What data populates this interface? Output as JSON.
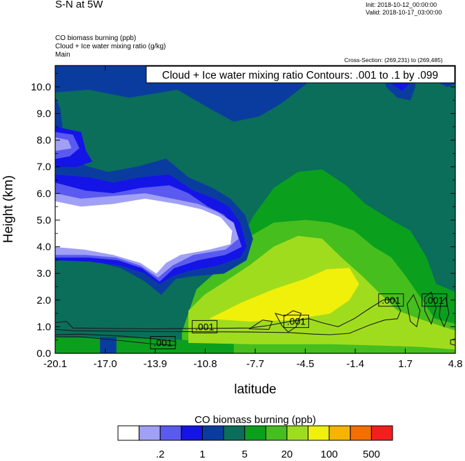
{
  "header": {
    "title": "S-N at 5W",
    "init": "Init: 2018-10-12_00:00:00",
    "valid": "Valid: 2018-10-17_03:00:00",
    "field1": "CO biomass burning   (ppb)",
    "field2": "Cloud + Ice water mixing ratio   (g/kg)",
    "field3": "Main",
    "cross_section": "Cross-Section: (269,231) to (269,485)"
  },
  "chart_data": {
    "type": "heatmap",
    "title": "Cloud + Ice water mixing ratio Contours: .001 to .1 by .099",
    "xlabel": "latitude",
    "ylabel": "Height (km)",
    "xlim": [
      -20.1,
      4.8
    ],
    "ylim": [
      0.0,
      10.8
    ],
    "x_ticks": [
      "-20.1",
      "-17.0",
      "-13.9",
      "-10.8",
      "-7.7",
      "-4.5",
      "-1.4",
      "1.7",
      "4.8"
    ],
    "y_ticks": [
      "0.0",
      "1.0",
      "2.0",
      "3.0",
      "4.0",
      "5.0",
      "6.0",
      "7.0",
      "8.0",
      "9.0",
      "10.0"
    ],
    "contour_labels": [
      {
        "text": ".001",
        "lat": -13.4,
        "height": 0.4
      },
      {
        "text": ".001",
        "lat": -10.8,
        "height": 1.0
      },
      {
        "text": ".001",
        "lat": -5.1,
        "height": 1.2
      },
      {
        "text": ".001",
        "lat": 0.8,
        "height": 2.0
      },
      {
        "text": ".001",
        "lat": 3.5,
        "height": 2.0
      }
    ],
    "colorbar": {
      "label": "CO biomass burning  (ppb)",
      "colors": [
        "#ffffff",
        "#a0a0f5",
        "#5a5af0",
        "#1414e6",
        "#0a3ca0",
        "#0a6e5a",
        "#0aa01e",
        "#46be1e",
        "#a0dc1e",
        "#f0f00a",
        "#f5b400",
        "#f56e00",
        "#f51e1e"
      ],
      "tick_labels": [
        ".2",
        "1",
        "5",
        "20",
        "100",
        "500"
      ]
    },
    "regions": [
      {
        "fill": "#0a6e5a",
        "pts": [
          [
            -20.1,
            0
          ],
          [
            4.8,
            0
          ],
          [
            4.8,
            10.8
          ],
          [
            -20.1,
            10.8
          ]
        ]
      },
      {
        "fill": "#0aa01e",
        "pts": [
          [
            -11.5,
            1.6
          ],
          [
            -10,
            2.6
          ],
          [
            -9,
            3.8
          ],
          [
            -7.7,
            5.2
          ],
          [
            -6.5,
            6.2
          ],
          [
            -5,
            6.8
          ],
          [
            -3.5,
            6.9
          ],
          [
            -2,
            6.3
          ],
          [
            -0.8,
            5.6
          ],
          [
            0.8,
            5.0
          ],
          [
            2,
            4.6
          ],
          [
            3,
            3.6
          ],
          [
            3.6,
            2.6
          ],
          [
            4.8,
            2.3
          ],
          [
            4.8,
            0
          ],
          [
            -11.5,
            0
          ]
        ]
      },
      {
        "fill": "#46be1e",
        "pts": [
          [
            -12.2,
            0.8
          ],
          [
            -11.3,
            2.4
          ],
          [
            -10,
            3.1
          ],
          [
            -8.5,
            4.2
          ],
          [
            -6.5,
            4.9
          ],
          [
            -4.5,
            5.0
          ],
          [
            -3,
            4.9
          ],
          [
            -1.5,
            4.6
          ],
          [
            -0.3,
            4.0
          ],
          [
            0.8,
            3.6
          ],
          [
            1.7,
            2.9
          ],
          [
            2.5,
            2.2
          ],
          [
            3.5,
            1.3
          ],
          [
            4.8,
            1.1
          ],
          [
            4.8,
            0
          ],
          [
            -12.2,
            0
          ]
        ]
      },
      {
        "fill": "#0aa01e",
        "pts": [
          [
            -20.1,
            0
          ],
          [
            -20.1,
            0.6
          ],
          [
            -14,
            0.55
          ],
          [
            -12.2,
            0.5
          ],
          [
            -10.8,
            0.45
          ],
          [
            -9,
            0.4
          ],
          [
            -9,
            0
          ],
          [
            -20.1,
            0
          ]
        ]
      },
      {
        "fill": "#a0dc1e",
        "pts": [
          [
            -11.8,
            1.6
          ],
          [
            -10.8,
            2.2
          ],
          [
            -9.5,
            2.7
          ],
          [
            -8,
            3.3
          ],
          [
            -6.5,
            4.0
          ],
          [
            -5,
            4.4
          ],
          [
            -3.5,
            4.3
          ],
          [
            -2.3,
            3.6
          ],
          [
            -1,
            2.9
          ],
          [
            0,
            2.3
          ],
          [
            1.2,
            1.6
          ],
          [
            2.5,
            1.3
          ],
          [
            4,
            1.0
          ],
          [
            4.8,
            0.85
          ],
          [
            4.8,
            0.15
          ],
          [
            2.5,
            0.25
          ],
          [
            0,
            0.3
          ],
          [
            -3,
            0.35
          ],
          [
            -8,
            0.35
          ],
          [
            -11.8,
            0.4
          ]
        ]
      },
      {
        "fill": "#f0f00a",
        "pts": [
          [
            -10.5,
            1.3
          ],
          [
            -8.5,
            1.9
          ],
          [
            -6.5,
            2.4
          ],
          [
            -4.5,
            2.8
          ],
          [
            -3.2,
            3.15
          ],
          [
            -1.8,
            3.2
          ],
          [
            -1.2,
            2.6
          ],
          [
            -1.8,
            2.0
          ],
          [
            -3,
            1.5
          ],
          [
            -5.5,
            1.25
          ],
          [
            -8,
            1.2
          ]
        ]
      },
      {
        "fill": "#0a3ca0",
        "pts": [
          [
            -20.1,
            3.9
          ],
          [
            -19.5,
            4.6
          ],
          [
            -19.6,
            5.8
          ],
          [
            -19.5,
            7.8
          ],
          [
            -19.8,
            9.2
          ],
          [
            -20.1,
            9.6
          ]
        ]
      },
      {
        "fill": "#0a3ca0",
        "pts": [
          [
            -15.5,
            9.6
          ],
          [
            -12.5,
            9.9
          ],
          [
            -10.5,
            9.2
          ],
          [
            -9,
            8.7
          ],
          [
            -7.4,
            8.9
          ],
          [
            -6,
            9.4
          ],
          [
            -4.5,
            10.1
          ],
          [
            -3.5,
            10.8
          ],
          [
            -20.1,
            10.8
          ],
          [
            -20.1,
            9.8
          ],
          [
            -18,
            9.9
          ]
        ]
      },
      {
        "fill": "#0a3ca0",
        "pts": [
          [
            -13.5,
            2.2
          ],
          [
            -14.5,
            2.7
          ],
          [
            -16,
            3.2
          ],
          [
            -18.5,
            3.6
          ],
          [
            -20.1,
            3.8
          ],
          [
            -20.1,
            7.2
          ],
          [
            -19.4,
            7.3
          ],
          [
            -18,
            7.0
          ],
          [
            -16.8,
            6.8
          ],
          [
            -15,
            7.0
          ],
          [
            -13.2,
            7.3
          ],
          [
            -11.8,
            6.6
          ],
          [
            -10.3,
            6.2
          ],
          [
            -9.2,
            5.8
          ],
          [
            -8.3,
            5.2
          ],
          [
            -7.8,
            4.3
          ],
          [
            -8.2,
            3.5
          ],
          [
            -9.6,
            3.0
          ],
          [
            -11.5,
            2.9
          ],
          [
            -12.6,
            2.8
          ]
        ]
      },
      {
        "fill": "#1414e6",
        "pts": [
          [
            -13.6,
            2.6
          ],
          [
            -14.5,
            3.0
          ],
          [
            -16,
            3.3
          ],
          [
            -18,
            3.45
          ],
          [
            -20.1,
            3.5
          ],
          [
            -20.1,
            6.7
          ],
          [
            -18,
            6.6
          ],
          [
            -16.5,
            6.4
          ],
          [
            -14.8,
            6.6
          ],
          [
            -13,
            6.7
          ],
          [
            -11.5,
            6.1
          ],
          [
            -10.2,
            5.8
          ],
          [
            -9.3,
            5.5
          ],
          [
            -8.6,
            4.9
          ],
          [
            -8.2,
            4.0
          ],
          [
            -8.6,
            3.6
          ],
          [
            -10,
            3.3
          ],
          [
            -11.8,
            3.1
          ],
          [
            -12.8,
            2.9
          ]
        ]
      },
      {
        "fill": "#5a5af0",
        "pts": [
          [
            -13.6,
            2.7
          ],
          [
            -14.7,
            3.2
          ],
          [
            -16.2,
            3.5
          ],
          [
            -18,
            3.6
          ],
          [
            -20.1,
            3.6
          ],
          [
            -20.1,
            6.4
          ],
          [
            -18.2,
            6.1
          ],
          [
            -16.5,
            6.0
          ],
          [
            -14.8,
            6.2
          ],
          [
            -13,
            6.3
          ],
          [
            -11.8,
            6.0
          ],
          [
            -10.6,
            5.5
          ],
          [
            -9.6,
            5.2
          ],
          [
            -8.9,
            4.7
          ],
          [
            -8.5,
            4.0
          ],
          [
            -9.5,
            3.7
          ],
          [
            -11.2,
            3.5
          ],
          [
            -12.7,
            3.2
          ]
        ]
      },
      {
        "fill": "#a0a0f5",
        "pts": [
          [
            -13.7,
            2.85
          ],
          [
            -14.8,
            3.3
          ],
          [
            -16.3,
            3.6
          ],
          [
            -18.2,
            3.7
          ],
          [
            -20.1,
            3.7
          ],
          [
            -20.1,
            6.0
          ],
          [
            -18.5,
            5.8
          ],
          [
            -16.5,
            5.9
          ],
          [
            -14.5,
            6.0
          ],
          [
            -12.8,
            5.8
          ],
          [
            -11.2,
            5.6
          ],
          [
            -10,
            5.3
          ],
          [
            -9.0,
            4.9
          ],
          [
            -8.7,
            4.3
          ],
          [
            -9.5,
            3.9
          ],
          [
            -11.5,
            3.7
          ],
          [
            -12.8,
            3.3
          ]
        ]
      },
      {
        "fill": "#ffffff",
        "pts": [
          [
            -13.8,
            3.0
          ],
          [
            -14.8,
            3.4
          ],
          [
            -16.5,
            3.7
          ],
          [
            -18.3,
            3.9
          ],
          [
            -20.1,
            4.0
          ],
          [
            -20.1,
            5.7
          ],
          [
            -18.5,
            5.5
          ],
          [
            -16.5,
            5.6
          ],
          [
            -14.5,
            5.8
          ],
          [
            -12.5,
            5.6
          ],
          [
            -11,
            5.4
          ],
          [
            -9.8,
            5.1
          ],
          [
            -9.1,
            4.6
          ],
          [
            -9.2,
            4.1
          ],
          [
            -10.5,
            3.9
          ],
          [
            -12.3,
            3.7
          ],
          [
            -13.2,
            3.4
          ]
        ]
      },
      {
        "fill": "#1414e6",
        "pts": [
          [
            -20.1,
            8.5
          ],
          [
            -18.5,
            8.3
          ],
          [
            -18.2,
            7.6
          ],
          [
            -17.8,
            7.2
          ],
          [
            -18.8,
            7.0
          ],
          [
            -20.1,
            7.0
          ]
        ]
      },
      {
        "fill": "#5a5af0",
        "pts": [
          [
            -20.1,
            8.3
          ],
          [
            -19,
            8.2
          ],
          [
            -18.6,
            7.7
          ],
          [
            -19.2,
            7.4
          ],
          [
            -20.1,
            7.3
          ]
        ]
      },
      {
        "fill": "#a0a0f5",
        "pts": [
          [
            -20.1,
            8.1
          ],
          [
            -19.3,
            8.0
          ],
          [
            -19.1,
            7.7
          ],
          [
            -20.1,
            7.6
          ]
        ]
      },
      {
        "fill": "#0a3ca0",
        "pts": [
          [
            0.2,
            10.8
          ],
          [
            0.5,
            10.0
          ],
          [
            1.2,
            9.6
          ],
          [
            2,
            9.5
          ],
          [
            2.3,
            10.0
          ],
          [
            2.3,
            10.8
          ]
        ]
      },
      {
        "fill": "#1414e6",
        "pts": [
          [
            0.6,
            10.6
          ],
          [
            0.9,
            10.1
          ],
          [
            1.5,
            9.85
          ],
          [
            1.9,
            10.1
          ],
          [
            1.8,
            10.6
          ]
        ]
      },
      {
        "fill": "#0a3ca0",
        "pts": [
          [
            3.2,
            10.8
          ],
          [
            3.6,
            10.2
          ],
          [
            4.3,
            10.0
          ],
          [
            4.8,
            10.1
          ],
          [
            4.8,
            10.8
          ]
        ]
      },
      {
        "fill": "#0a3ca0",
        "pts": [
          [
            -17.3,
            0
          ],
          [
            -17.3,
            0.6
          ],
          [
            -16.3,
            0.6
          ],
          [
            -16.3,
            0
          ]
        ]
      }
    ],
    "contours": [
      [
        [
          -20.1,
          1.15
        ],
        [
          -19.4,
          1.2
        ],
        [
          -19,
          0.95
        ],
        [
          -14,
          0.92
        ],
        [
          -8,
          0.95
        ],
        [
          -6.8,
          1.05
        ],
        [
          -5.5,
          1.2
        ],
        [
          -4.3,
          1.3
        ],
        [
          -3.5,
          1.15
        ],
        [
          -2.5,
          1.0
        ],
        [
          -1.5,
          1.3
        ],
        [
          -0.5,
          1.7
        ],
        [
          0.3,
          2.0
        ],
        [
          1.0,
          2.05
        ],
        [
          1.4,
          1.6
        ],
        [
          1.2,
          1.3
        ],
        [
          0.4,
          1.25
        ],
        [
          -0.6,
          1.05
        ],
        [
          -1.8,
          0.75
        ],
        [
          -3,
          0.7
        ],
        [
          -4,
          0.72
        ],
        [
          -5.5,
          0.78
        ],
        [
          -8,
          0.8
        ],
        [
          -14,
          0.82
        ],
        [
          -19,
          0.85
        ],
        [
          -20.1,
          0.9
        ]
      ],
      [
        [
          -20.1,
          0.7
        ],
        [
          -18.5,
          0.72
        ],
        [
          -16,
          0.65
        ],
        [
          -14,
          0.55
        ],
        [
          -12.6,
          0.45
        ],
        [
          -12.6,
          0.3
        ],
        [
          -14,
          0.35
        ],
        [
          -16,
          0.48
        ],
        [
          -18.5,
          0.62
        ],
        [
          -20.1,
          0.62
        ]
      ],
      [
        [
          -6.4,
          1.5
        ],
        [
          -6.0,
          1.05
        ],
        [
          -5.6,
          0.8
        ],
        [
          -5.1,
          1.0
        ],
        [
          -4.8,
          1.5
        ],
        [
          -5.3,
          1.6
        ],
        [
          -5.8,
          1.4
        ]
      ],
      [
        [
          -8.0,
          0.92
        ],
        [
          -7.2,
          1.25
        ],
        [
          -6.6,
          1.2
        ],
        [
          -6.8,
          0.9
        ]
      ],
      [
        [
          1.8,
          1.85
        ],
        [
          2.2,
          2.2
        ],
        [
          2.6,
          1.6
        ],
        [
          2.4,
          1.0
        ],
        [
          2.0,
          1.2
        ]
      ],
      [
        [
          2.9,
          2.1
        ],
        [
          3.3,
          2.3
        ],
        [
          3.6,
          1.7
        ],
        [
          3.3,
          1.1
        ],
        [
          2.9,
          1.6
        ]
      ],
      [
        [
          3.9,
          1.9
        ],
        [
          4.2,
          2.1
        ],
        [
          4.4,
          1.5
        ],
        [
          4.1,
          1.0
        ],
        [
          3.8,
          1.4
        ]
      ],
      [
        [
          4.5,
          0.5
        ],
        [
          4.8,
          0.55
        ],
        [
          4.8,
          0.3
        ],
        [
          4.5,
          0.35
        ]
      ]
    ]
  }
}
